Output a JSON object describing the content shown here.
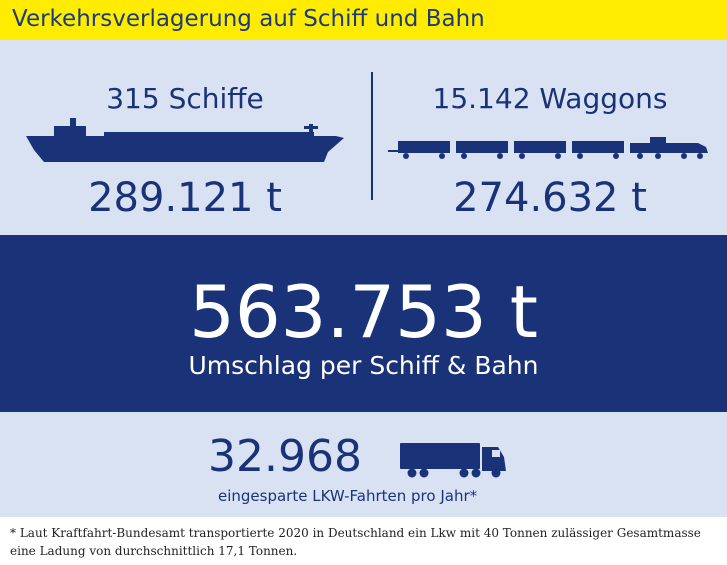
{
  "header": {
    "title": "Verkehrsverlagerung auf Schiff und Bahn"
  },
  "ships": {
    "count_label": "315 Schiffe",
    "weight_label": "289.121 t",
    "icon": "ship-icon"
  },
  "wagons": {
    "count_label": "15.142 Waggons",
    "weight_label": "274.632 t",
    "icon": "freight-train-icon"
  },
  "total": {
    "value_label": "563.753 t",
    "caption": "Umschlag per Schiff & Bahn"
  },
  "trucks": {
    "value_label": "32.968",
    "caption": "eingesparte LKW-Fahrten pro Jahr*",
    "icon": "truck-icon"
  },
  "footnote": "* Laut Kraftfahrt-Bundesamt transportierte 2020 in Deutschland ein Lkw mit 40 Tonnen zulässiger Gesamtmasse eine Ladung von durchschnittlich 17,1 Tonnen.",
  "colors": {
    "accent_yellow": "#ffec00",
    "navy": "#1a3278",
    "light_panel": "#d9e2f3"
  }
}
